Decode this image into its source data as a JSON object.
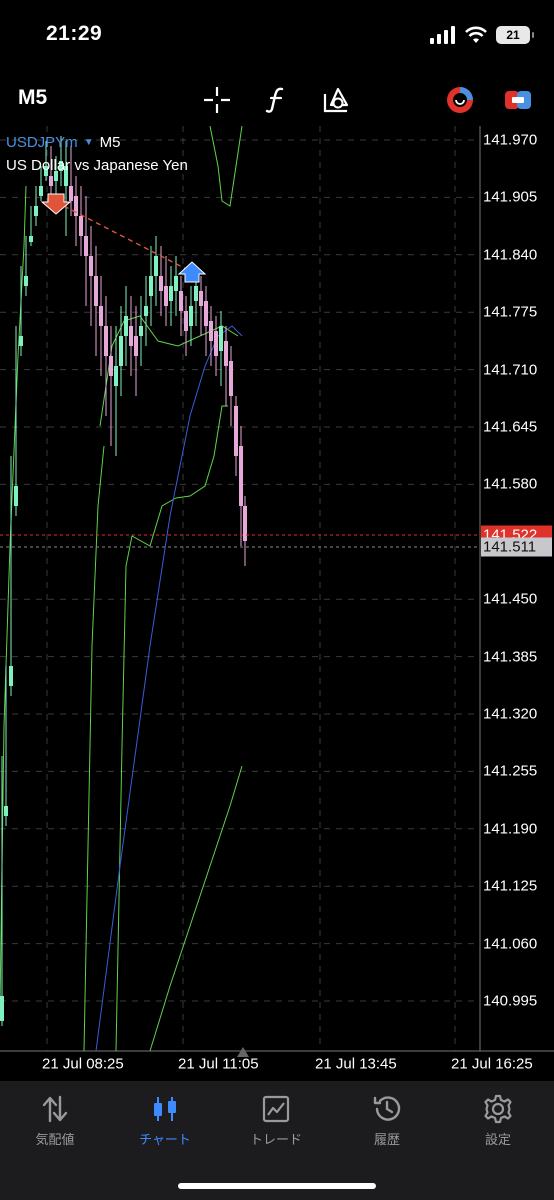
{
  "status_bar": {
    "time": "21:29",
    "battery": "21"
  },
  "toolbar": {
    "timeframe": "M5",
    "icons": [
      "crosshair-icon",
      "indicators-icon",
      "objects-icon",
      "account-icon",
      "trade-icon"
    ]
  },
  "chart": {
    "symbol": "USDJPYm",
    "timeframe": "M5",
    "description": "US Dollar vs Japanese Yen",
    "price_axis": [
      "141.970",
      "141.905",
      "141.840",
      "141.775",
      "141.710",
      "141.645",
      "141.580",
      "141.450",
      "141.385",
      "141.320",
      "141.255",
      "141.190",
      "141.125",
      "141.060",
      "140.995"
    ],
    "ask_price": "141.522",
    "bid_price": "141.511",
    "time_axis": [
      "21 Jul 08:25",
      "21 Jul 11:05",
      "21 Jul 13:45",
      "21 Jul 16:25"
    ],
    "colors": {
      "bull": "#7ff0c0",
      "bear": "#e6a8d8",
      "ma_green": "#5fd44a",
      "ma_blue": "#3b5bdb",
      "ask_line": "#e0312a",
      "bid_line": "#8a8a8a",
      "grid": "#3a3a3a"
    }
  },
  "tabbar": {
    "tabs": [
      {
        "label": "気配値",
        "icon": "quotes-arrows-icon",
        "active": false
      },
      {
        "label": "チャート",
        "icon": "candlestick-chart-icon",
        "active": true
      },
      {
        "label": "トレード",
        "icon": "trade-chart-icon",
        "active": false
      },
      {
        "label": "履歴",
        "icon": "history-clock-icon",
        "active": false
      },
      {
        "label": "設定",
        "icon": "settings-gear-icon",
        "active": false
      }
    ]
  }
}
